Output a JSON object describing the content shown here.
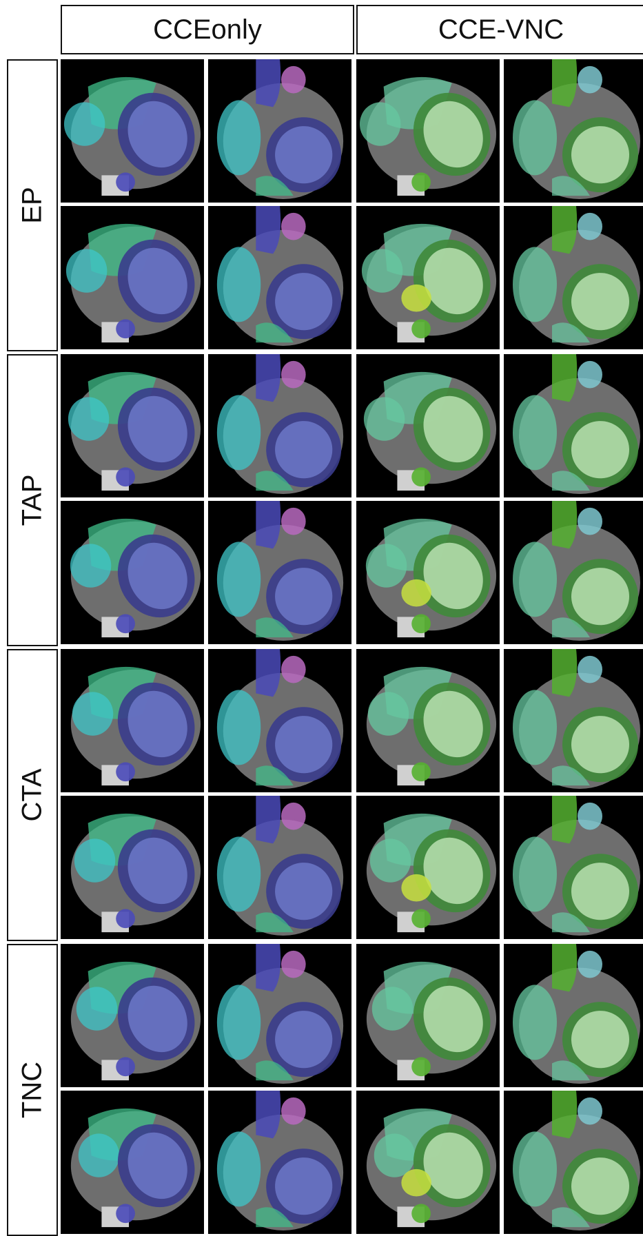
{
  "columns": [
    "CCEonly",
    "CCE-VNC"
  ],
  "rows": [
    "EP",
    "TAP",
    "CTA",
    "TNC"
  ],
  "colors": {
    "cceonly_left_ventricle": "#6c78c8",
    "cceonly_myocardium": "#3a3c8c",
    "cceonly_left_atrium": "#4a4ab8",
    "cceonly_right_ventricle": "#3fbf8a",
    "cceonly_right_atrium": "#3fc6c8",
    "cceonly_pulmonary_artery": "#b86ac0",
    "ccevnc_left_ventricle": "#b8e0b0",
    "ccevnc_myocardium": "#3f8a3a",
    "ccevnc_right_ventricle": "#66c8a0",
    "ccevnc_aorta": "#55b030",
    "ccevnc_left_atrium": "#c8e040",
    "ccevnc_pulmonary_artery": "#7fc8d0"
  }
}
